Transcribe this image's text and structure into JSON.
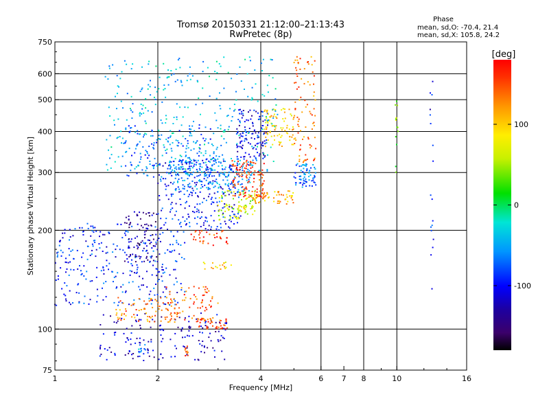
{
  "chart_data": {
    "type": "scatter",
    "title": "Tromsø 20150331 21:12:00–21:13:43",
    "subtitle": "RwPretec (8p)",
    "xlabel": "Frequency [MHz]",
    "ylabel": "Stationary phase Virtual Height [km]",
    "x_scale": "log",
    "y_scale": "log",
    "xlim": [
      1,
      16
    ],
    "ylim": [
      75,
      750
    ],
    "x_ticks": [
      1,
      2,
      4,
      6,
      7,
      8,
      10,
      16
    ],
    "x_tick_labels": [
      "1",
      "2",
      "4",
      "6",
      "7",
      "8",
      "10",
      "16"
    ],
    "y_ticks": [
      75,
      100,
      200,
      300,
      400,
      500,
      600,
      750
    ],
    "y_tick_labels": [
      "75",
      "100",
      "200",
      "300",
      "400",
      "500",
      "600",
      "750"
    ],
    "x_grid": [
      2,
      4,
      6,
      8,
      10
    ],
    "y_grid": [
      100,
      200,
      300,
      400,
      500,
      600
    ],
    "stats": {
      "heading": "Phase",
      "line_o": "mean, sd,O: -70.4, 21.4",
      "line_x": "mean, sd,X: 105.8, 24.2"
    },
    "colorbar": {
      "title": "[deg]",
      "ticks": [
        100,
        0,
        -100
      ],
      "tick_labels": [
        "100",
        "0",
        "-100"
      ],
      "range": [
        -180,
        180
      ],
      "colormap": "rainbow"
    },
    "clusters": [
      {
        "x": [
          1.35,
          3.2
        ],
        "y": [
          80,
          112
        ],
        "phase": -120,
        "n": 160
      },
      {
        "x": [
          1.0,
          2.4
        ],
        "y": [
          118,
          210
        ],
        "phase": -90,
        "n": 320
      },
      {
        "x": [
          1.6,
          2.0
        ],
        "y": [
          160,
          230
        ],
        "phase": -135,
        "n": 90
      },
      {
        "x": [
          1.5,
          2.3
        ],
        "y": [
          105,
          125
        ],
        "phase": 130,
        "n": 80
      },
      {
        "x": [
          2.1,
          3.0
        ],
        "y": [
          105,
          135
        ],
        "phase": 145,
        "n": 70
      },
      {
        "x": [
          2.6,
          3.2
        ],
        "y": [
          100,
          108
        ],
        "phase": 150,
        "n": 40
      },
      {
        "x": [
          2.7,
          3.3
        ],
        "y": [
          152,
          160
        ],
        "phase": 95,
        "n": 18
      },
      {
        "x": [
          2.5,
          3.2
        ],
        "y": [
          180,
          200
        ],
        "phase": 155,
        "n": 35
      },
      {
        "x": [
          2.0,
          3.5
        ],
        "y": [
          200,
          330
        ],
        "phase": -95,
        "n": 260
      },
      {
        "x": [
          2.2,
          3.8
        ],
        "y": [
          260,
          330
        ],
        "phase": -60,
        "n": 180
      },
      {
        "x": [
          1.6,
          3.0
        ],
        "y": [
          290,
          420
        ],
        "phase": -70,
        "n": 160
      },
      {
        "x": [
          3.0,
          3.9
        ],
        "y": [
          215,
          265
        ],
        "phase": 60,
        "n": 70
      },
      {
        "x": [
          3.3,
          4.1
        ],
        "y": [
          250,
          330
        ],
        "phase": 155,
        "n": 110
      },
      {
        "x": [
          3.4,
          4.2
        ],
        "y": [
          330,
          470
        ],
        "phase": -110,
        "n": 120
      },
      {
        "x": [
          3.8,
          5.0
        ],
        "y": [
          240,
          265
        ],
        "phase": 110,
        "n": 60
      },
      {
        "x": [
          4.1,
          5.0
        ],
        "y": [
          360,
          470
        ],
        "phase": 100,
        "n": 90
      },
      {
        "x": [
          5.0,
          5.8
        ],
        "y": [
          270,
          320
        ],
        "phase": -70,
        "n": 70
      },
      {
        "x": [
          5.0,
          5.8
        ],
        "y": [
          320,
          680
        ],
        "phase": 135,
        "n": 90
      },
      {
        "x": [
          1.4,
          4.5
        ],
        "y": [
          300,
          680
        ],
        "phase": -40,
        "n": 330
      },
      {
        "x": [
          3.4,
          3.8
        ],
        "y": [
          228,
          238
        ],
        "phase": 80,
        "n": 20
      },
      {
        "x": [
          1.75,
          1.85
        ],
        "y": [
          84,
          90
        ],
        "phase": -60,
        "n": 12
      },
      {
        "x": [
          2.4,
          2.45
        ],
        "y": [
          82,
          89
        ],
        "phase": 150,
        "n": 10
      },
      {
        "x": [
          9.9,
          10.1
        ],
        "y": [
          300,
          520
        ],
        "phase": 40,
        "n": 14
      },
      {
        "x": [
          12.5,
          12.8
        ],
        "y": [
          130,
          620
        ],
        "phase": -100,
        "n": 18
      }
    ]
  }
}
